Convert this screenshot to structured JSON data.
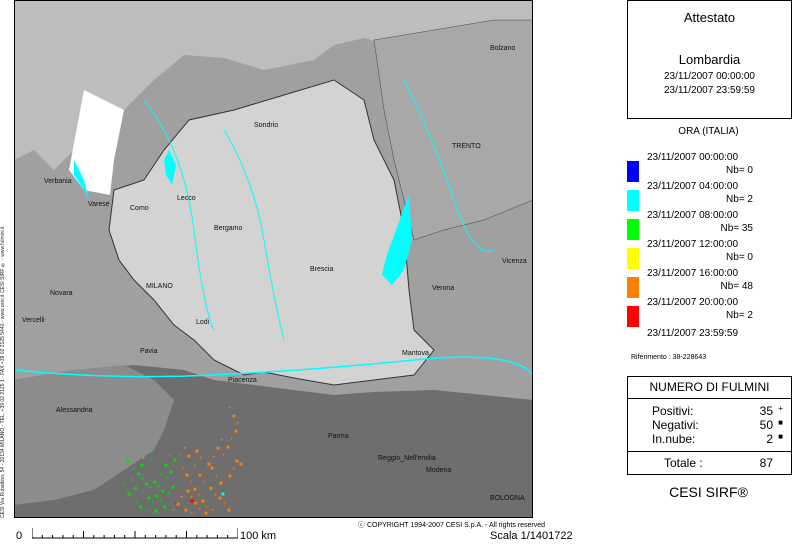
{
  "header": {
    "title": "Attestato",
    "region": "Lombardia",
    "start": "23/11/2007 00:00:00",
    "end": "23/11/2007 23:59:59"
  },
  "legend": {
    "title": "ORA (ITALIA)",
    "rows": [
      {
        "time": "23/11/2007 00:00:00",
        "count": "Nb= 0",
        "color": "#0000ff"
      },
      {
        "time": "23/11/2007 04:00:00",
        "count": "Nb= 2",
        "color": "#00ffff"
      },
      {
        "time": "23/11/2007 08:00:00",
        "count": "Nb= 35",
        "color": "#00ff00"
      },
      {
        "time": "23/11/2007 12:00:00",
        "count": "Nb= 0",
        "color": "#ffff00"
      },
      {
        "time": "23/11/2007 16:00:00",
        "count": "Nb= 48",
        "color": "#ff8000"
      },
      {
        "time": "23/11/2007 20:00:00",
        "count": "Nb= 2",
        "color": "#ff0000"
      }
    ],
    "end_time": "23/11/2007 23:59:59"
  },
  "riferimento": "Riferimento : 38-228643",
  "fulmini": {
    "title": "NUMERO DI FULMINI",
    "positivi_label": "Positivi:",
    "positivi_value": "35",
    "negativi_label": "Negativi:",
    "negativi_value": "50",
    "innube_label": "In.nube:",
    "innube_value": "2",
    "totale_label": "Totale :",
    "totale_value": "87"
  },
  "brand": "CESI SIRF®",
  "copyright": "COPYRIGHT 1994-2007 CESI S.p.A. - All rights reserved",
  "scale": {
    "zero": "0",
    "km": "100 km",
    "ratio": "Scala 1/1401722"
  },
  "side_text": "CESI Via Rubattino, 54 - 20134 MILANO - TEL. +39 02 2125 1 - FAX +39 02 2125 5440 - www.cesi.it   CESI SIRF ® - www.fulmini.it",
  "cities": {
    "bolzano": "Bolzano",
    "sondrio": "Sondrio",
    "trento": "TRENTO",
    "verbania": "Verbania",
    "varese": "Varese",
    "como": "Como",
    "lecco": "Lecco",
    "bergamo": "Bergamo",
    "brescia": "Brescia",
    "vicenza": "Vicenza",
    "novara": "Novara",
    "milano": "MILANO",
    "verona": "Verona",
    "vercelli": "Vercelli",
    "lodi": "Lodi",
    "pavia": "Pavia",
    "mantova": "Mantova",
    "piacenza": "Piacenza",
    "alessandria": "Alessandria",
    "parma": "Parma",
    "reggio": "Reggio_Nell'emilia",
    "modena": "Modena",
    "bologna": "BOLOGNA"
  },
  "colors": {
    "lombardia": "#d3d3d3",
    "neighbors": "#a0a0a0",
    "south": "#6e6e6e",
    "water": "#00ffff",
    "switzerland": "#ffffff"
  },
  "strikes": [
    {
      "color": "green",
      "points": [
        [
          104,
          452
        ],
        [
          112,
          463
        ],
        [
          118,
          471
        ],
        [
          123,
          476
        ],
        [
          127,
          481
        ],
        [
          131,
          486
        ],
        [
          135,
          490
        ],
        [
          139,
          484
        ],
        [
          143,
          489
        ],
        [
          147,
          493
        ],
        [
          151,
          480
        ],
        [
          155,
          474
        ],
        [
          128,
          494
        ],
        [
          133,
          500
        ],
        [
          137,
          505
        ],
        [
          141,
          498
        ],
        [
          145,
          503
        ],
        [
          149,
          509
        ],
        [
          153,
          495
        ],
        [
          157,
          489
        ],
        [
          121,
          504
        ],
        [
          125,
          509
        ],
        [
          131,
          512
        ],
        [
          140,
          513
        ],
        [
          145,
          477
        ],
        [
          150,
          467
        ],
        [
          154,
          458
        ],
        [
          159,
          462
        ],
        [
          164,
          456
        ],
        [
          120,
          490
        ],
        [
          116,
          482
        ],
        [
          113,
          496
        ],
        [
          109,
          487
        ],
        [
          126,
          467
        ],
        [
          136,
          461
        ]
      ]
    },
    {
      "color": "orange",
      "points": [
        [
          167,
          470
        ],
        [
          171,
          477
        ],
        [
          175,
          484
        ],
        [
          179,
          491
        ],
        [
          183,
          497
        ],
        [
          187,
          503
        ],
        [
          191,
          509
        ],
        [
          172,
          493
        ],
        [
          176,
          499
        ],
        [
          180,
          505
        ],
        [
          184,
          511
        ],
        [
          196,
          470
        ],
        [
          201,
          478
        ],
        [
          205,
          485
        ],
        [
          208,
          457
        ],
        [
          212,
          449
        ],
        [
          216,
          441
        ],
        [
          220,
          433
        ],
        [
          214,
          410
        ],
        [
          218,
          418
        ],
        [
          222,
          425
        ],
        [
          225,
          466
        ],
        [
          200,
          497
        ],
        [
          195,
          490
        ],
        [
          188,
          484
        ],
        [
          184,
          477
        ],
        [
          179,
          468
        ],
        [
          173,
          458
        ],
        [
          169,
          450
        ],
        [
          204,
          500
        ],
        [
          209,
          505
        ],
        [
          213,
          512
        ],
        [
          166,
          499
        ],
        [
          162,
          506
        ],
        [
          158,
          512
        ],
        [
          170,
          512
        ],
        [
          176,
          515
        ],
        [
          190,
          515
        ],
        [
          197,
          512
        ],
        [
          214,
          478
        ],
        [
          218,
          471
        ],
        [
          221,
          463
        ],
        [
          206,
          442
        ],
        [
          202,
          450
        ],
        [
          198,
          459
        ],
        [
          193,
          466
        ],
        [
          185,
          460
        ],
        [
          181,
          453
        ]
      ]
    },
    {
      "color": "red",
      "points": [
        [
          160,
          506
        ],
        [
          176,
          503
        ]
      ]
    },
    {
      "color": "cyan",
      "points": [
        [
          128,
          460
        ],
        [
          207,
          496
        ]
      ]
    }
  ]
}
